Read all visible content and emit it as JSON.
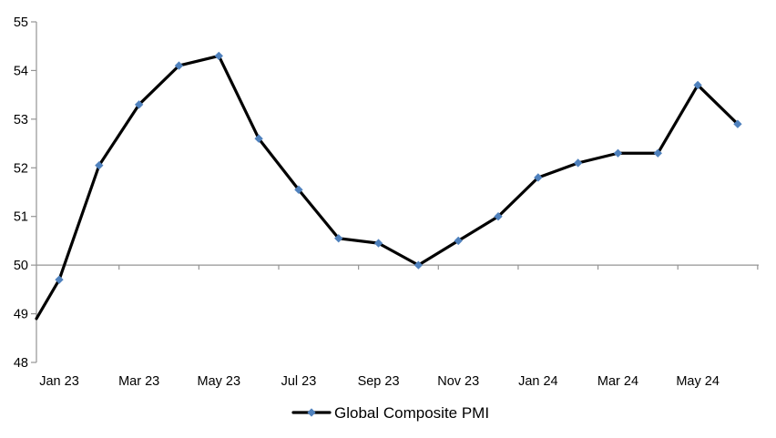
{
  "chart_data": {
    "type": "line",
    "title": "",
    "categories": [
      "Jan 23",
      "Feb 23",
      "Mar 23",
      "Apr 23",
      "May 23",
      "Jun 23",
      "Jul 23",
      "Aug 23",
      "Sep 23",
      "Oct 23",
      "Nov 23",
      "Dec 23",
      "Jan 24",
      "Feb 24",
      "Mar 24",
      "Apr 24",
      "May 24",
      "Jun 24"
    ],
    "series": [
      {
        "name": "Global Composite PMI",
        "values": [
          49.7,
          52.05,
          53.3,
          54.1,
          54.3,
          52.6,
          51.55,
          50.55,
          50.45,
          50.0,
          50.5,
          51.0,
          51.8,
          52.1,
          52.3,
          52.3,
          53.7,
          52.9
        ],
        "clipped_lead_in_value_at_left_axis": 48.9,
        "line_color": "#000000",
        "marker_shape": "diamond",
        "marker_color": "#4F81BD"
      }
    ],
    "x_tick_labels": [
      "Jan 23",
      "Mar 23",
      "May 23",
      "Jul 23",
      "Sep 23",
      "Nov 23",
      "Jan 24",
      "Mar 24",
      "May 24"
    ],
    "y_ticks": [
      55,
      54,
      53,
      52,
      51,
      50,
      49,
      48
    ],
    "ylim": [
      48,
      55
    ],
    "x_axis_crosses_at": 50,
    "grid": "off",
    "legend": {
      "position": "bottom",
      "entries": [
        "Global Composite PMI"
      ]
    },
    "axis_color": "#949494",
    "text_color": "#000000",
    "background": "#FFFFFF"
  }
}
